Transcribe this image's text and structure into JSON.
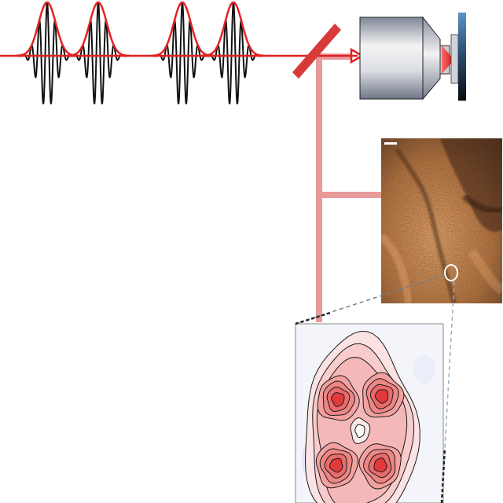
{
  "colors": {
    "beam": "#e02020",
    "envelope": "#e42222",
    "carrier": "#111111",
    "signal_path": "#e89a9a",
    "mirror": "#d83a3a",
    "objective_light": "#f4f4f4",
    "objective_dark": "#7f8796",
    "sample_top": "#5b93c8",
    "sample_bottom": "#0b0b12",
    "image_light": "#e6a46c",
    "image_dark": "#3a2214",
    "contour_peak": "#e23a3a",
    "contour_line": "#1a1a1a",
    "guide_line": "#555555"
  },
  "icons": {
    "pulse_train": "pulse-train-icon",
    "beam_splitter": "dichroic-mirror-icon",
    "objective": "microscope-objective-icon",
    "sample": "sample-slide-icon",
    "image": "microscopy-image-icon",
    "inset": "contour-map-icon"
  },
  "pulses": [
    {
      "center": 60
    },
    {
      "center": 125
    },
    {
      "center": 232
    },
    {
      "center": 297
    }
  ]
}
